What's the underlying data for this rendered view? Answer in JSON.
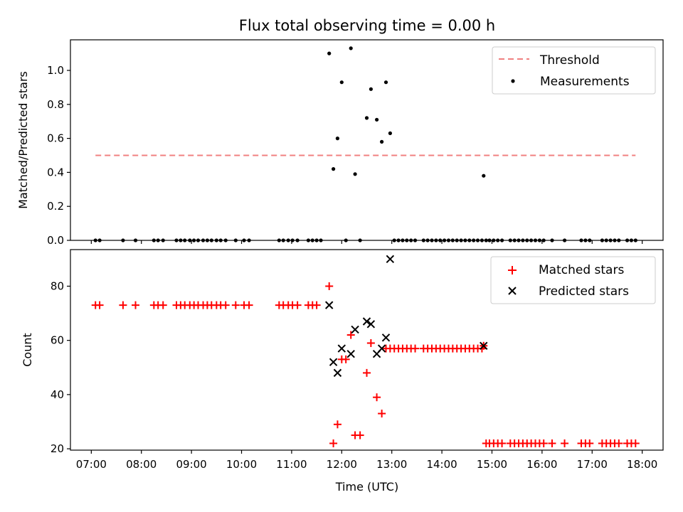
{
  "chart_data": [
    {
      "type": "scatter",
      "title": "Flux total observing time = 0.00 h",
      "xlabel": "",
      "ylabel": "Matched/Predicted stars",
      "xlim": [
        "06:35",
        "18:25"
      ],
      "ylim": [
        0,
        1.18
      ],
      "yticks": [
        0.0,
        0.2,
        0.4,
        0.6,
        0.8,
        1.0
      ],
      "ytick_labels": [
        "0.0",
        "0.2",
        "0.4",
        "0.6",
        "0.8",
        "1.0"
      ],
      "legend_position": "top-right",
      "lines": [
        {
          "name": "Threshold",
          "style": "dashed",
          "color": "#f08080",
          "x": [
            "07:05",
            "17:52"
          ],
          "y": [
            0.5,
            0.5
          ]
        }
      ],
      "series": [
        {
          "name": "Measurements",
          "marker": "dot",
          "color": "#000000",
          "x": [
            "07:05",
            "07:10",
            "07:38",
            "07:53",
            "08:15",
            "08:20",
            "08:26",
            "08:42",
            "08:47",
            "08:52",
            "08:58",
            "09:03",
            "09:08",
            "09:14",
            "09:19",
            "09:24",
            "09:30",
            "09:35",
            "09:41",
            "09:53",
            "10:03",
            "10:09",
            "10:45",
            "10:50",
            "10:56",
            "11:01",
            "11:07",
            "11:20",
            "11:25",
            "11:30",
            "11:35",
            "11:45",
            "11:50",
            "11:55",
            "12:00",
            "12:05",
            "12:11",
            "12:16",
            "12:22",
            "12:30",
            "12:35",
            "12:42",
            "12:48",
            "12:53",
            "12:58",
            "13:03",
            "13:08",
            "13:13",
            "13:18",
            "13:23",
            "13:28",
            "13:38",
            "13:43",
            "13:48",
            "13:53",
            "13:58",
            "14:03",
            "14:08",
            "14:13",
            "14:18",
            "14:23",
            "14:28",
            "14:33",
            "14:38",
            "14:43",
            "14:48",
            "14:50",
            "14:53",
            "14:57",
            "15:02",
            "15:07",
            "15:12",
            "15:22",
            "15:27",
            "15:32",
            "15:37",
            "15:42",
            "15:47",
            "15:52",
            "15:57",
            "16:02",
            "16:12",
            "16:27",
            "16:47",
            "16:52",
            "16:57",
            "17:12",
            "17:17",
            "17:22",
            "17:27",
            "17:32",
            "17:42",
            "17:47",
            "17:52"
          ],
          "y": [
            0,
            0,
            0,
            0,
            0,
            0,
            0,
            0,
            0,
            0,
            0,
            0,
            0,
            0,
            0,
            0,
            0,
            0,
            0,
            0,
            0,
            0,
            0,
            0,
            0,
            0,
            0,
            0,
            0,
            0,
            0,
            1.1,
            0.42,
            0.6,
            0.93,
            0,
            1.13,
            0.39,
            0,
            0.72,
            0.89,
            0.71,
            0.58,
            0.93,
            0.63,
            0,
            0,
            0,
            0,
            0,
            0,
            0,
            0,
            0,
            0,
            0,
            0,
            0,
            0,
            0,
            0,
            0,
            0,
            0,
            0,
            0,
            0.38,
            0,
            0,
            0,
            0,
            0,
            0,
            0,
            0,
            0,
            0,
            0,
            0,
            0,
            0,
            0,
            0,
            0,
            0,
            0,
            0,
            0,
            0,
            0,
            0,
            0,
            0,
            0
          ]
        }
      ]
    },
    {
      "type": "scatter",
      "title": "",
      "xlabel": "Time (UTC)",
      "ylabel": "Count",
      "xlim": [
        "06:35",
        "18:25"
      ],
      "ylim": [
        19.5,
        93.5
      ],
      "yticks": [
        20,
        40,
        60,
        80
      ],
      "ytick_labels": [
        "20",
        "40",
        "60",
        "80"
      ],
      "xticks": [
        "07:00",
        "08:00",
        "09:00",
        "10:00",
        "11:00",
        "12:00",
        "13:00",
        "14:00",
        "15:00",
        "16:00",
        "17:00",
        "18:00"
      ],
      "legend_position": "top-right",
      "series": [
        {
          "name": "Matched stars",
          "marker": "plus",
          "color": "#ff0000",
          "x": [
            "07:05",
            "07:10",
            "07:38",
            "07:53",
            "08:15",
            "08:20",
            "08:26",
            "08:42",
            "08:47",
            "08:52",
            "08:58",
            "09:03",
            "09:08",
            "09:14",
            "09:19",
            "09:24",
            "09:30",
            "09:35",
            "09:41",
            "09:53",
            "10:03",
            "10:09",
            "10:45",
            "10:50",
            "10:56",
            "11:01",
            "11:07",
            "11:20",
            "11:25",
            "11:30",
            "11:45",
            "11:50",
            "11:55",
            "12:00",
            "12:05",
            "12:11",
            "12:16",
            "12:22",
            "12:30",
            "12:35",
            "12:42",
            "12:48",
            "12:53",
            "12:58",
            "13:03",
            "13:08",
            "13:13",
            "13:18",
            "13:23",
            "13:28",
            "13:38",
            "13:43",
            "13:48",
            "13:53",
            "13:58",
            "14:03",
            "14:08",
            "14:13",
            "14:18",
            "14:23",
            "14:28",
            "14:33",
            "14:38",
            "14:43",
            "14:48",
            "14:50",
            "14:53",
            "14:57",
            "15:02",
            "15:07",
            "15:12",
            "15:22",
            "15:27",
            "15:32",
            "15:37",
            "15:42",
            "15:47",
            "15:52",
            "15:57",
            "16:02",
            "16:12",
            "16:27",
            "16:47",
            "16:52",
            "16:57",
            "17:12",
            "17:17",
            "17:22",
            "17:27",
            "17:32",
            "17:42",
            "17:47",
            "17:52"
          ],
          "y": [
            73,
            73,
            73,
            73,
            73,
            73,
            73,
            73,
            73,
            73,
            73,
            73,
            73,
            73,
            73,
            73,
            73,
            73,
            73,
            73,
            73,
            73,
            73,
            73,
            73,
            73,
            73,
            73,
            73,
            73,
            80,
            22,
            29,
            53,
            53,
            62,
            25,
            25,
            48,
            59,
            39,
            33,
            57,
            57,
            57,
            57,
            57,
            57,
            57,
            57,
            57,
            57,
            57,
            57,
            57,
            57,
            57,
            57,
            57,
            57,
            57,
            57,
            57,
            57,
            57,
            58,
            22,
            22,
            22,
            22,
            22,
            22,
            22,
            22,
            22,
            22,
            22,
            22,
            22,
            22,
            22,
            22,
            22,
            22,
            22,
            22,
            22,
            22,
            22,
            22,
            22,
            22,
            22
          ]
        },
        {
          "name": "Predicted stars",
          "marker": "x",
          "color": "#000000",
          "x": [
            "11:45",
            "11:50",
            "11:55",
            "12:00",
            "12:11",
            "12:16",
            "12:30",
            "12:35",
            "12:42",
            "12:48",
            "12:53",
            "12:58",
            "14:50"
          ],
          "y": [
            73,
            52,
            48,
            57,
            55,
            64,
            67,
            66,
            55,
            57,
            61,
            90,
            58
          ]
        }
      ]
    }
  ]
}
